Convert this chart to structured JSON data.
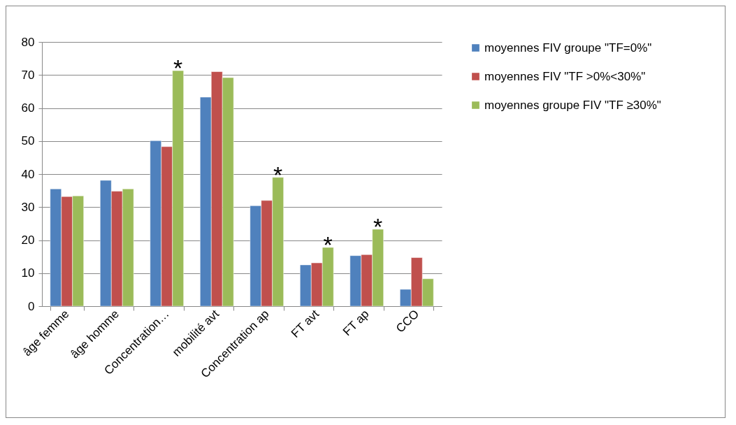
{
  "chart_data": {
    "type": "bar",
    "categories": [
      "âge femme",
      "âge homme",
      "Concentration…",
      "mobilité avt",
      "Concentration ap",
      "FT avt",
      "FT ap",
      "CCO"
    ],
    "series": [
      {
        "name": "moyennes FIV groupe \"TF=0%\"",
        "color": "#4f81bd",
        "values": [
          35.5,
          38.1,
          50.1,
          63.3,
          30.4,
          12.5,
          15.3,
          5.1
        ]
      },
      {
        "name": "moyennes FIV \"TF >0%<30%\"",
        "color": "#c0504d",
        "values": [
          33.2,
          34.8,
          48.3,
          71,
          32,
          13.1,
          15.6,
          14.7
        ]
      },
      {
        "name": "moyennes groupe FIV \"TF ≥30%\"",
        "color": "#9bbb59",
        "values": [
          33.4,
          35.5,
          71.3,
          69.2,
          39,
          17.8,
          23.3,
          8.3
        ],
        "value_labels": [
          null,
          null,
          "*",
          null,
          "*",
          "*",
          "*",
          null
        ]
      }
    ],
    "ylim": [
      0,
      80
    ],
    "yticks": [
      0,
      10,
      20,
      30,
      40,
      50,
      60,
      70,
      80
    ],
    "grid": "y",
    "legend": "right"
  }
}
